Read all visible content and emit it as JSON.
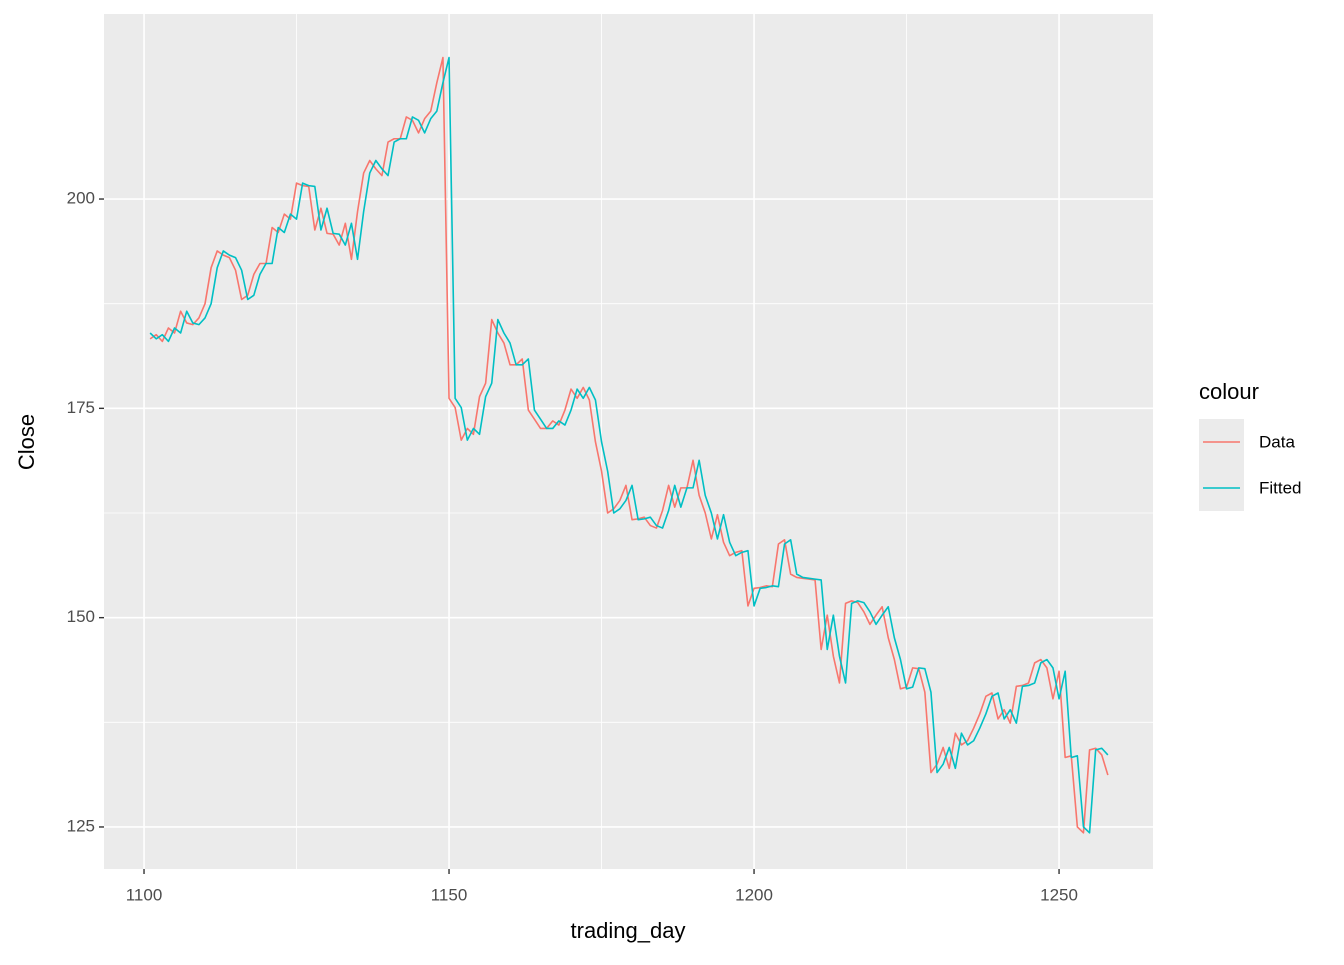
{
  "chart_data": {
    "type": "line",
    "x_label": "trading_day",
    "y_label": "Close",
    "legend_title": "colour",
    "legend_position": "right",
    "grid": true,
    "xlim": [
      1093.44,
      1265.4
    ],
    "xticks": [
      1100,
      1150,
      1200,
      1250
    ],
    "ylim": [
      119.98,
      222.1
    ],
    "yticks": [
      125,
      150,
      175,
      200
    ],
    "x": [
      1101,
      1102,
      1103,
      1104,
      1105,
      1106,
      1107,
      1108,
      1109,
      1110,
      1111,
      1112,
      1113,
      1114,
      1115,
      1116,
      1117,
      1118,
      1119,
      1120,
      1121,
      1122,
      1123,
      1124,
      1125,
      1126,
      1127,
      1128,
      1129,
      1130,
      1131,
      1132,
      1133,
      1134,
      1135,
      1136,
      1137,
      1138,
      1139,
      1140,
      1141,
      1142,
      1143,
      1144,
      1145,
      1146,
      1147,
      1148,
      1149,
      1150,
      1151,
      1152,
      1153,
      1154,
      1155,
      1156,
      1157,
      1158,
      1159,
      1160,
      1161,
      1162,
      1163,
      1164,
      1165,
      1166,
      1167,
      1168,
      1169,
      1170,
      1171,
      1172,
      1173,
      1174,
      1175,
      1176,
      1177,
      1178,
      1179,
      1180,
      1181,
      1182,
      1183,
      1184,
      1185,
      1186,
      1187,
      1188,
      1189,
      1190,
      1191,
      1192,
      1193,
      1194,
      1195,
      1196,
      1197,
      1198,
      1199,
      1200,
      1201,
      1202,
      1203,
      1204,
      1205,
      1206,
      1207,
      1208,
      1209,
      1210,
      1211,
      1212,
      1213,
      1214,
      1215,
      1216,
      1217,
      1218,
      1219,
      1220,
      1221,
      1222,
      1223,
      1224,
      1225,
      1226,
      1227,
      1228,
      1229,
      1230,
      1231,
      1232,
      1233,
      1234,
      1235,
      1236,
      1237,
      1238,
      1239,
      1240,
      1241,
      1242,
      1243,
      1244,
      1245,
      1246,
      1247,
      1248,
      1249,
      1250,
      1251,
      1252,
      1253,
      1254,
      1255,
      1256,
      1257,
      1258
    ],
    "series": [
      {
        "name": "Data",
        "color": "#F8766D",
        "values": [
          183.3,
          183.8,
          183.0,
          184.6,
          184.0,
          186.6,
          185.2,
          185.0,
          185.8,
          187.5,
          191.8,
          193.8,
          193.3,
          193.0,
          191.5,
          188.0,
          188.5,
          191.0,
          192.3,
          192.3,
          196.6,
          196.0,
          198.2,
          197.6,
          201.9,
          201.6,
          201.5,
          196.3,
          198.9,
          195.9,
          195.8,
          194.5,
          197.1,
          192.8,
          198.5,
          203.1,
          204.6,
          203.6,
          202.8,
          206.8,
          207.2,
          207.2,
          209.8,
          209.4,
          207.9,
          209.6,
          210.5,
          213.9,
          216.9,
          176.2,
          175.1,
          171.2,
          172.6,
          171.9,
          176.4,
          178.0,
          185.6,
          184.0,
          182.8,
          180.2,
          180.2,
          180.9,
          174.8,
          173.7,
          172.6,
          172.6,
          173.5,
          173.0,
          174.8,
          177.3,
          176.2,
          177.5,
          176.0,
          171.0,
          167.5,
          162.5,
          163.0,
          164.0,
          165.8,
          161.7,
          161.8,
          162.0,
          161.0,
          160.7,
          162.8,
          165.8,
          163.2,
          165.5,
          165.5,
          168.8,
          164.6,
          162.5,
          159.4,
          162.3,
          159.0,
          157.4,
          157.8,
          158.0,
          151.4,
          153.5,
          153.6,
          153.8,
          153.7,
          158.8,
          159.3,
          155.2,
          154.8,
          154.7,
          154.6,
          154.5,
          146.2,
          150.3,
          145.4,
          142.2,
          151.7,
          152.0,
          151.8,
          150.7,
          149.2,
          150.3,
          151.3,
          147.6,
          145.0,
          141.5,
          141.7,
          144.0,
          143.9,
          141.1,
          131.5,
          132.5,
          134.5,
          132.0,
          136.2,
          134.8,
          135.3,
          136.8,
          138.5,
          140.6,
          141.0,
          137.9,
          139.0,
          137.4,
          141.8,
          141.9,
          142.2,
          144.6,
          145.0,
          144.0,
          140.3,
          143.6,
          133.3,
          133.5,
          125.0,
          124.3,
          134.2,
          134.4,
          133.6,
          131.2
        ]
      },
      {
        "name": "Fitted",
        "color": "#00BFC4",
        "values": [
          184.0,
          183.3,
          183.8,
          183.0,
          184.6,
          184.0,
          186.6,
          185.2,
          185.0,
          185.8,
          187.5,
          191.8,
          193.8,
          193.3,
          193.0,
          191.5,
          188.0,
          188.5,
          191.0,
          192.3,
          192.3,
          196.6,
          196.0,
          198.2,
          197.6,
          201.9,
          201.6,
          201.5,
          196.3,
          198.9,
          195.9,
          195.8,
          194.5,
          197.1,
          192.8,
          198.5,
          203.1,
          204.6,
          203.6,
          202.8,
          206.8,
          207.2,
          207.2,
          209.8,
          209.4,
          207.9,
          209.6,
          210.5,
          213.9,
          216.9,
          176.2,
          175.1,
          171.2,
          172.6,
          171.9,
          176.4,
          178.0,
          185.6,
          184.0,
          182.8,
          180.2,
          180.2,
          180.9,
          174.8,
          173.7,
          172.6,
          172.6,
          173.5,
          173.0,
          174.8,
          177.3,
          176.2,
          177.5,
          176.0,
          171.0,
          167.5,
          162.5,
          163.0,
          164.0,
          165.8,
          161.7,
          161.8,
          162.0,
          161.0,
          160.7,
          162.8,
          165.8,
          163.2,
          165.5,
          165.5,
          168.8,
          164.6,
          162.5,
          159.4,
          162.3,
          159.0,
          157.4,
          157.8,
          158.0,
          151.4,
          153.5,
          153.6,
          153.8,
          153.7,
          158.8,
          159.3,
          155.2,
          154.8,
          154.7,
          154.6,
          154.5,
          146.2,
          150.3,
          145.4,
          142.2,
          151.7,
          152.0,
          151.8,
          150.7,
          149.2,
          150.3,
          151.3,
          147.6,
          145.0,
          141.5,
          141.7,
          144.0,
          143.9,
          141.1,
          131.5,
          132.5,
          134.5,
          132.0,
          136.2,
          134.8,
          135.3,
          136.8,
          138.5,
          140.6,
          141.0,
          137.9,
          139.0,
          137.4,
          141.8,
          141.9,
          142.2,
          144.6,
          145.0,
          144.0,
          140.3,
          143.6,
          133.3,
          133.5,
          125.0,
          124.3,
          134.2,
          134.4,
          133.6
        ]
      }
    ]
  }
}
